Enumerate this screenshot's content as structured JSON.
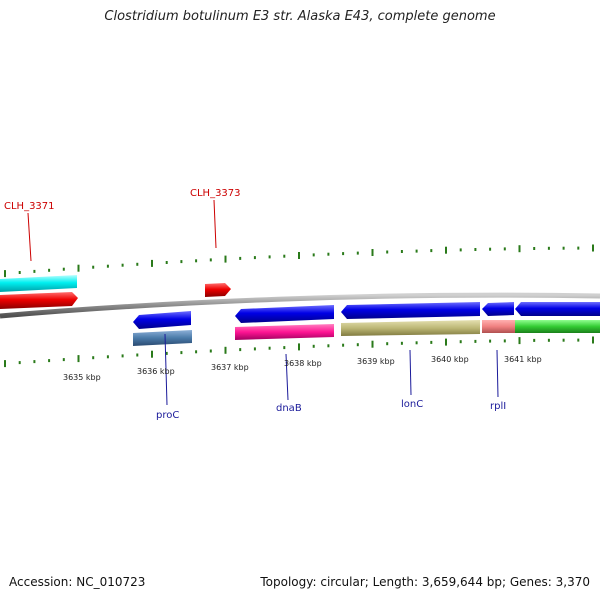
{
  "title": "Clostridium botulinum E3 str. Alaska E43, complete genome",
  "footer": {
    "accession": "Accession: NC_010723",
    "summary": "Topology: circular; Length: 3,659,644 bp; Genes: 3,370"
  },
  "colors": {
    "backbone": "#8c8c8c",
    "ticks": "#2a7a1a",
    "label_top": "#cc0000",
    "label_bottom": "#1a1a9a"
  },
  "scale_labels": [
    "3635 kbp",
    "3636 kbp",
    "3637 kbp",
    "3638 kbp",
    "3639 kbp",
    "3640 kbp",
    "3641 kbp"
  ],
  "gene_labels_top": [
    "CLH_3371",
    "CLH_3373"
  ],
  "gene_labels_bottom": [
    "proC",
    "dnaB",
    "lonC",
    "rplI"
  ]
}
